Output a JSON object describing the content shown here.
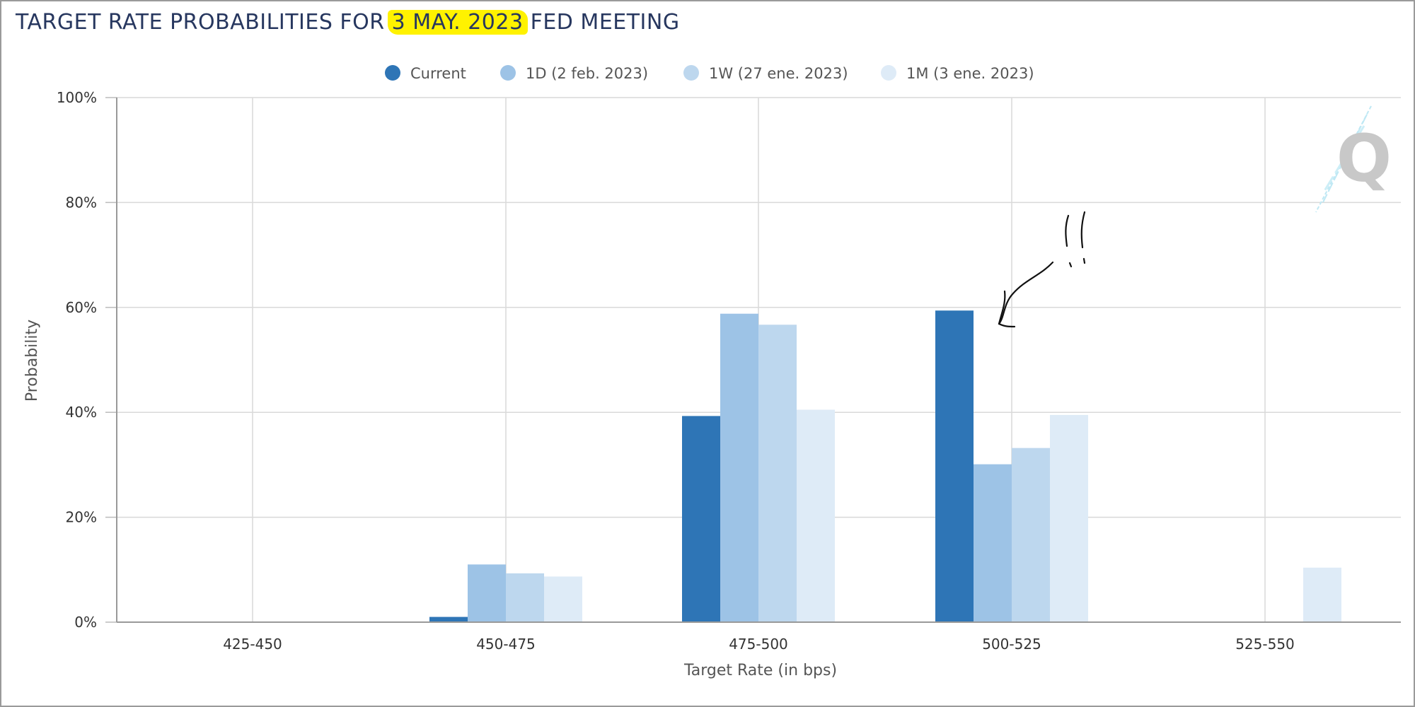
{
  "title": {
    "before": "TARGET RATE PROBABILITIES FOR ",
    "highlight": "3 MAY. 2023",
    "after": " FED MEETING"
  },
  "annotation": {
    "marks": "!!",
    "highlight_color": "#fff200"
  },
  "watermark": {
    "letter": "Q"
  },
  "chart_data": {
    "type": "bar",
    "xlabel": "Target Rate (in bps)",
    "ylabel": "Probability",
    "ylim": [
      0,
      100
    ],
    "y_ticks": [
      "0%",
      "20%",
      "40%",
      "60%",
      "80%",
      "100%"
    ],
    "categories": [
      "425-450",
      "450-475",
      "475-500",
      "500-525",
      "525-550"
    ],
    "grid": true,
    "legend_position": "top-center",
    "series": [
      {
        "name": "Current",
        "color": "#2e75b6",
        "values": [
          0,
          1.0,
          39.3,
          59.4,
          0
        ]
      },
      {
        "name": "1D (2 feb. 2023)",
        "color": "#9dc3e6",
        "values": [
          0,
          11.0,
          58.8,
          30.1,
          0
        ]
      },
      {
        "name": "1W (27 ene. 2023)",
        "color": "#bdd7ee",
        "values": [
          0,
          9.3,
          56.7,
          33.2,
          0
        ]
      },
      {
        "name": "1M (3 ene. 2023)",
        "color": "#deebf7",
        "values": [
          0,
          8.7,
          40.5,
          39.5,
          10.4
        ]
      }
    ]
  }
}
